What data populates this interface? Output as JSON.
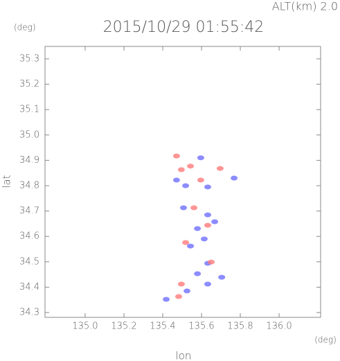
{
  "chart_data": {
    "type": "scatter",
    "title": "2015/10/29 01:55:42",
    "annotation": "ALT(km) 2.0",
    "y_unit": "(deg)",
    "x_unit": "(deg)",
    "xlabel": "lon",
    "ylabel": "lat",
    "xlim": [
      134.793,
      136.214
    ],
    "ylim": [
      34.281,
      35.349
    ],
    "xticks": [
      {
        "value": 135.0,
        "label": "135.0"
      },
      135.2,
      135.4,
      135.6,
      135.8,
      {
        "value": 136.0,
        "label": "136.0"
      }
    ],
    "yticks": [
      34.3,
      34.4,
      34.5,
      34.6,
      34.7,
      34.8,
      34.9,
      {
        "value": 35.0,
        "label": "35.0"
      },
      35.1,
      35.2,
      35.3
    ],
    "series": [
      {
        "color": "#6f6fff",
        "x": [
          135.471,
          135.518,
          135.632,
          135.768,
          135.596,
          135.632,
          135.579,
          135.614,
          135.543,
          135.632,
          135.579,
          135.632,
          135.525,
          135.418,
          135.668,
          135.507,
          135.704
        ],
        "values": [
          34.822,
          34.8,
          34.795,
          34.83,
          34.91,
          34.685,
          34.631,
          34.59,
          34.562,
          34.494,
          34.453,
          34.412,
          34.385,
          34.352,
          34.658,
          34.713,
          34.439
        ]
      },
      {
        "color": "#ff7a7a",
        "x": [
          135.471,
          135.496,
          135.696,
          135.561,
          135.632,
          135.518,
          135.65,
          135.496,
          135.482,
          135.543,
          135.596
        ],
        "values": [
          34.917,
          34.863,
          34.868,
          34.713,
          34.644,
          34.576,
          34.499,
          34.412,
          34.363,
          34.877,
          34.822
        ]
      }
    ]
  }
}
